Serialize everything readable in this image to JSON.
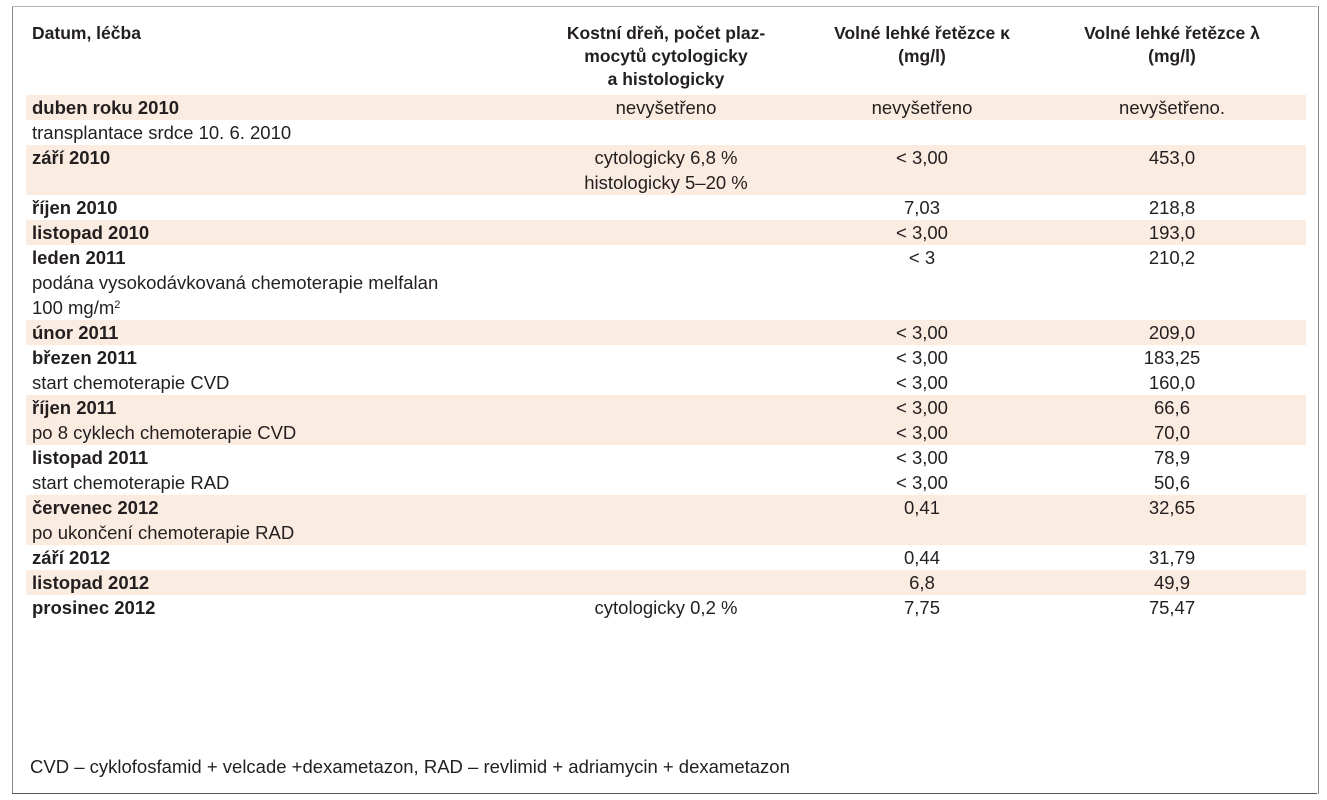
{
  "headers": [
    "Datum, léčba",
    "Kostní dřeň, počet plaz-\nmocytů cytologicky\na histologicky",
    "Volné lehké řetězce κ\n(mg/l)",
    "Volné lehké řetězce λ\n(mg/l)"
  ],
  "rows": [
    {
      "c1": "duben roku 2010",
      "bold": true,
      "shade": true,
      "c2": "nevyšetřeno",
      "c3": "nevyšetřeno",
      "c4": "nevyšetřeno."
    },
    {
      "c1": "transplantace srdce 10. 6. 2010",
      "bold": false,
      "shade": false,
      "c2": "",
      "c3": "",
      "c4": ""
    },
    {
      "c1": "září 2010",
      "bold": true,
      "shade": true,
      "c2": "cytologicky 6,8 %\nhistologicky 5–20 %",
      "c3": "< 3,00",
      "c4": "453,0"
    },
    {
      "c1": "říjen 2010",
      "bold": true,
      "shade": false,
      "c2": "",
      "c3": "7,03",
      "c4": "218,8"
    },
    {
      "c1": "listopad 2010",
      "bold": true,
      "shade": true,
      "c2": "",
      "c3": "< 3,00",
      "c4": "193,0"
    },
    {
      "c1": "leden 2011",
      "bold": true,
      "shade": false,
      "c2": "",
      "c3": "< 3",
      "c4": "210,2"
    },
    {
      "c1": "podána vysokodávkovaná chemoterapie melfalan\n100 mg/m",
      "sup": "2",
      "bold": false,
      "shade": false,
      "c2": "",
      "c3": "",
      "c4": ""
    },
    {
      "c1": "únor 2011",
      "bold": true,
      "shade": true,
      "c2": "",
      "c3": "< 3,00",
      "c4": "209,0"
    },
    {
      "c1": "březen 2011",
      "bold": true,
      "shade": false,
      "c2": "",
      "c3": "< 3,00",
      "c4": "183,25"
    },
    {
      "c1": "start chemoterapie CVD",
      "bold": false,
      "shade": false,
      "c2": "",
      "c3": "< 3,00",
      "c4": "160,0"
    },
    {
      "c1": "říjen 2011",
      "bold": true,
      "shade": true,
      "c2": "",
      "c3": "< 3,00",
      "c4": "66,6"
    },
    {
      "c1": "po 8 cyklech chemoterapie CVD",
      "bold": false,
      "shade": true,
      "c2": "",
      "c3": "< 3,00",
      "c4": "70,0"
    },
    {
      "c1": "listopad 2011",
      "bold": true,
      "shade": false,
      "c2": "",
      "c3": "< 3,00",
      "c4": "78,9"
    },
    {
      "c1": "start chemoterapie RAD",
      "bold": false,
      "shade": false,
      "c2": "",
      "c3": "< 3,00",
      "c4": "50,6"
    },
    {
      "c1": "červenec 2012",
      "bold": true,
      "shade": true,
      "c2": "",
      "c3": "0,41",
      "c4": "32,65"
    },
    {
      "c1": "po ukončení chemoterapie RAD",
      "bold": false,
      "shade": true,
      "c2": "",
      "c3": "",
      "c4": ""
    },
    {
      "c1": "září 2012",
      "bold": true,
      "shade": false,
      "c2": "",
      "c3": "0,44",
      "c4": "31,79"
    },
    {
      "c1": "listopad 2012",
      "bold": true,
      "shade": true,
      "c2": "",
      "c3": "6,8",
      "c4": "49,9"
    },
    {
      "c1": "prosinec 2012",
      "bold": true,
      "shade": false,
      "c2": "cytologicky 0,2 %",
      "c3": "7,75",
      "c4": "75,47"
    }
  ],
  "footnote": "CVD – cyklofosfamid + velcade +dexametazon, RAD – revlimid + adriamycin + dexametazon"
}
